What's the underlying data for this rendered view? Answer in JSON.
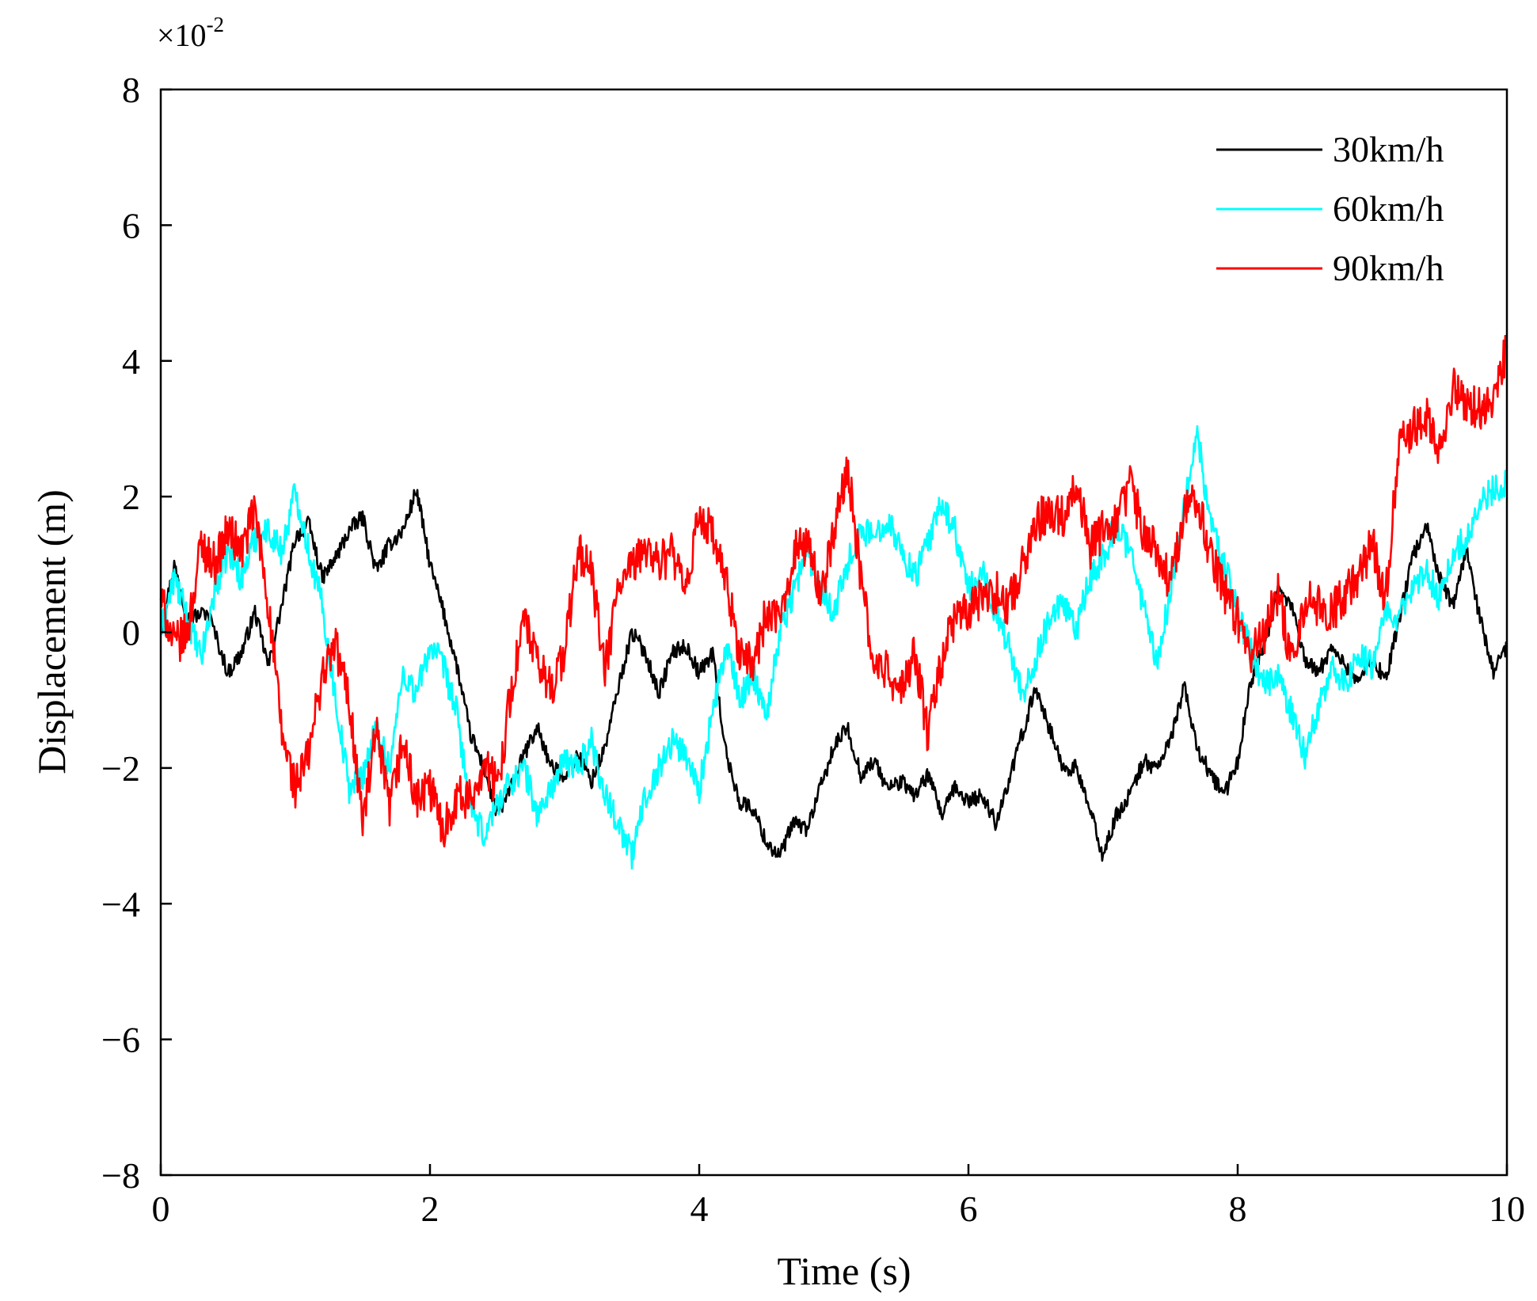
{
  "chart_data": {
    "type": "line",
    "title": "",
    "xlabel": "Time (s)",
    "ylabel": "Displacement (m)",
    "scale_label": "×10",
    "scale_exponent": "-2",
    "xlim": [
      0,
      10
    ],
    "ylim": [
      -8,
      8
    ],
    "xticks": [
      0,
      2,
      4,
      6,
      8,
      10
    ],
    "xtick_labels": [
      "0",
      "2",
      "4",
      "6",
      "8",
      "10"
    ],
    "yticks": [
      8,
      6,
      4,
      2,
      0,
      -2,
      -4,
      -6,
      -8
    ],
    "ytick_labels": [
      "8",
      "6",
      "4",
      "2",
      "0",
      "−2",
      "−4",
      "−6",
      "−8"
    ],
    "grid": false,
    "legend_position": "top-right",
    "series": [
      {
        "name": "30km/h",
        "color": "#000000",
        "x": [
          0,
          0.1,
          0.2,
          0.35,
          0.5,
          0.6,
          0.7,
          0.8,
          0.9,
          1.0,
          1.1,
          1.2,
          1.3,
          1.4,
          1.5,
          1.6,
          1.7,
          1.8,
          1.9,
          2.0,
          2.1,
          2.2,
          2.3,
          2.4,
          2.5,
          2.6,
          2.7,
          2.8,
          2.9,
          3.0,
          3.1,
          3.2,
          3.3,
          3.4,
          3.5,
          3.6,
          3.7,
          3.8,
          3.9,
          4.0,
          4.1,
          4.2,
          4.3,
          4.4,
          4.5,
          4.6,
          4.7,
          4.8,
          4.9,
          5.0,
          5.1,
          5.2,
          5.3,
          5.4,
          5.5,
          5.6,
          5.7,
          5.8,
          5.9,
          6.0,
          6.1,
          6.2,
          6.3,
          6.4,
          6.5,
          6.6,
          6.7,
          6.8,
          6.9,
          7.0,
          7.1,
          7.2,
          7.3,
          7.4,
          7.5,
          7.6,
          7.7,
          7.8,
          7.9,
          8.0,
          8.1,
          8.2,
          8.3,
          8.4,
          8.5,
          8.6,
          8.7,
          8.8,
          8.9,
          9.0,
          9.1,
          9.2,
          9.3,
          9.4,
          9.5,
          9.6,
          9.7,
          9.8,
          9.9,
          10.0
        ],
        "values": [
          0.0,
          1.0,
          0.2,
          0.3,
          -0.6,
          -0.3,
          0.3,
          -0.5,
          0.4,
          1.4,
          1.6,
          0.8,
          1.1,
          1.5,
          1.7,
          0.9,
          1.3,
          1.5,
          2.1,
          1.0,
          0.3,
          -0.5,
          -1.5,
          -2.0,
          -2.7,
          -2.3,
          -1.8,
          -1.4,
          -2.0,
          -2.1,
          -1.8,
          -2.2,
          -1.7,
          -0.8,
          0.0,
          -0.3,
          -0.9,
          -0.3,
          -0.2,
          -0.6,
          -0.3,
          -1.8,
          -2.5,
          -2.6,
          -3.1,
          -3.3,
          -2.8,
          -2.9,
          -2.3,
          -1.7,
          -1.4,
          -2.1,
          -1.9,
          -2.3,
          -2.2,
          -2.4,
          -2.1,
          -2.7,
          -2.3,
          -2.5,
          -2.4,
          -2.8,
          -2.2,
          -1.5,
          -0.8,
          -1.4,
          -2.0,
          -2.0,
          -2.6,
          -3.3,
          -2.7,
          -2.4,
          -1.9,
          -2.0,
          -1.6,
          -0.8,
          -1.7,
          -2.1,
          -2.4,
          -1.9,
          -0.7,
          -0.2,
          0.6,
          0.4,
          -0.4,
          -0.6,
          -0.2,
          -0.5,
          -0.7,
          -0.4,
          -0.7,
          0.2,
          1.1,
          1.6,
          0.8,
          0.4,
          1.2,
          0.2,
          -0.6,
          -0.2
        ]
      },
      {
        "name": "60km/h",
        "color": "#00ffff",
        "x": [
          0,
          0.1,
          0.2,
          0.3,
          0.4,
          0.5,
          0.6,
          0.7,
          0.8,
          0.9,
          1.0,
          1.1,
          1.2,
          1.3,
          1.4,
          1.5,
          1.6,
          1.7,
          1.8,
          1.9,
          2.0,
          2.1,
          2.2,
          2.3,
          2.4,
          2.5,
          2.6,
          2.7,
          2.8,
          2.9,
          3.0,
          3.1,
          3.2,
          3.3,
          3.4,
          3.5,
          3.6,
          3.7,
          3.8,
          3.9,
          4.0,
          4.1,
          4.2,
          4.3,
          4.4,
          4.5,
          4.6,
          4.7,
          4.8,
          4.9,
          5.0,
          5.1,
          5.2,
          5.3,
          5.4,
          5.5,
          5.6,
          5.7,
          5.8,
          5.9,
          6.0,
          6.1,
          6.2,
          6.3,
          6.4,
          6.5,
          6.6,
          6.7,
          6.8,
          6.9,
          7.0,
          7.1,
          7.2,
          7.3,
          7.4,
          7.5,
          7.6,
          7.7,
          7.8,
          7.9,
          8.0,
          8.1,
          8.2,
          8.3,
          8.4,
          8.5,
          8.6,
          8.7,
          8.8,
          8.9,
          9.0,
          9.1,
          9.2,
          9.3,
          9.4,
          9.5,
          9.6,
          9.7,
          9.8,
          9.9,
          10.0
        ],
        "values": [
          0.0,
          0.8,
          0.2,
          -0.4,
          0.6,
          1.2,
          0.8,
          1.4,
          1.5,
          1.2,
          2.1,
          1.2,
          0.4,
          -1.0,
          -2.3,
          -2.1,
          -1.4,
          -2.0,
          -0.6,
          -0.9,
          -0.2,
          -0.5,
          -1.2,
          -2.6,
          -3.0,
          -2.5,
          -2.2,
          -2.0,
          -2.7,
          -2.3,
          -1.9,
          -2.0,
          -1.6,
          -2.4,
          -2.8,
          -3.3,
          -2.4,
          -2.0,
          -1.6,
          -1.8,
          -2.3,
          -1.2,
          -0.2,
          -1.0,
          -0.6,
          -1.2,
          0.0,
          0.6,
          1.2,
          0.7,
          0.3,
          1.0,
          1.5,
          1.4,
          1.7,
          1.2,
          0.8,
          1.3,
          1.9,
          1.5,
          0.6,
          0.9,
          0.3,
          -0.2,
          -0.9,
          -0.4,
          0.2,
          0.4,
          0.0,
          0.8,
          1.1,
          1.6,
          1.2,
          0.4,
          -0.5,
          0.6,
          1.8,
          2.9,
          1.6,
          1.0,
          0.3,
          -0.3,
          -0.8,
          -0.6,
          -1.2,
          -1.8,
          -1.1,
          -0.5,
          -0.8,
          -0.3,
          -0.5,
          0.4,
          0.2,
          0.6,
          0.9,
          0.5,
          1.2,
          1.4,
          1.9,
          2.1,
          2.2
        ]
      },
      {
        "name": "90km/h",
        "color": "#ff0000",
        "x": [
          0,
          0.1,
          0.2,
          0.3,
          0.4,
          0.5,
          0.6,
          0.7,
          0.8,
          0.9,
          1.0,
          1.1,
          1.2,
          1.3,
          1.4,
          1.5,
          1.6,
          1.7,
          1.8,
          1.9,
          2.0,
          2.1,
          2.2,
          2.3,
          2.4,
          2.5,
          2.6,
          2.7,
          2.8,
          2.9,
          3.0,
          3.1,
          3.2,
          3.3,
          3.4,
          3.5,
          3.6,
          3.7,
          3.8,
          3.9,
          4.0,
          4.1,
          4.2,
          4.3,
          4.4,
          4.5,
          4.6,
          4.7,
          4.8,
          4.9,
          5.0,
          5.1,
          5.2,
          5.3,
          5.4,
          5.5,
          5.6,
          5.7,
          5.8,
          5.9,
          6.0,
          6.1,
          6.2,
          6.3,
          6.4,
          6.5,
          6.6,
          6.7,
          6.8,
          6.9,
          7.0,
          7.1,
          7.2,
          7.3,
          7.4,
          7.5,
          7.6,
          7.7,
          7.8,
          7.9,
          8.0,
          8.1,
          8.2,
          8.3,
          8.4,
          8.5,
          8.6,
          8.7,
          8.8,
          8.9,
          9.0,
          9.1,
          9.2,
          9.3,
          9.4,
          9.5,
          9.6,
          9.7,
          9.8,
          9.9,
          10.0
        ],
        "values": [
          0.5,
          -0.2,
          0.0,
          1.3,
          1.0,
          1.5,
          1.2,
          1.8,
          0.4,
          -1.5,
          -2.3,
          -1.8,
          -0.6,
          -0.2,
          -1.0,
          -2.8,
          -1.5,
          -2.6,
          -1.6,
          -2.5,
          -2.3,
          -2.9,
          -2.4,
          -2.5,
          -1.9,
          -2.3,
          -0.9,
          0.2,
          -0.5,
          -0.8,
          -0.3,
          1.2,
          0.9,
          -0.6,
          0.7,
          0.9,
          1.3,
          1.0,
          1.2,
          0.5,
          1.8,
          1.4,
          0.7,
          -0.3,
          -0.5,
          0.3,
          0.1,
          1.2,
          1.3,
          0.6,
          1.4,
          2.5,
          0.8,
          -0.5,
          -0.6,
          -0.9,
          -0.3,
          -1.5,
          -0.4,
          0.2,
          0.3,
          0.5,
          0.6,
          0.4,
          1.0,
          1.6,
          1.8,
          1.7,
          2.3,
          1.2,
          1.5,
          1.6,
          2.2,
          1.5,
          1.2,
          0.7,
          1.8,
          2.0,
          1.1,
          0.6,
          0.2,
          -0.3,
          0.0,
          0.6,
          -0.4,
          0.5,
          0.4,
          0.3,
          0.6,
          0.8,
          1.3,
          0.5,
          2.8,
          3.0,
          3.2,
          2.6,
          3.6,
          3.4,
          3.3,
          3.5,
          4.2
        ]
      }
    ]
  }
}
